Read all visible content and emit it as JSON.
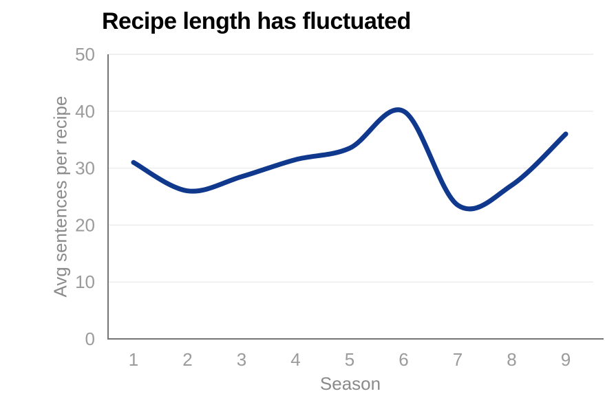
{
  "chart_data": {
    "type": "line",
    "title": "Recipe length has fluctuated",
    "xlabel": "Season",
    "ylabel": "Avg sentences per recipe",
    "categories": [
      "1",
      "2",
      "3",
      "4",
      "5",
      "6",
      "7",
      "8",
      "9"
    ],
    "series": [
      {
        "name": "Avg sentences per recipe",
        "values": [
          31,
          26,
          28.5,
          31.5,
          33.5,
          40,
          23.5,
          27,
          36
        ]
      }
    ],
    "ylim": [
      0,
      50
    ],
    "y_ticks": [
      0,
      10,
      20,
      30,
      40,
      50
    ],
    "grid": "horizontal-only",
    "legend": "none",
    "line_style": "smooth-spline",
    "colors": {
      "line": "#10398E",
      "title": "#000000",
      "tick_labels": "#9B9B9B",
      "axis_titles": "#8A8A8A",
      "gridlines": "#ECECEC",
      "axis_spines": "#757575",
      "background": "#FFFFFF"
    }
  }
}
